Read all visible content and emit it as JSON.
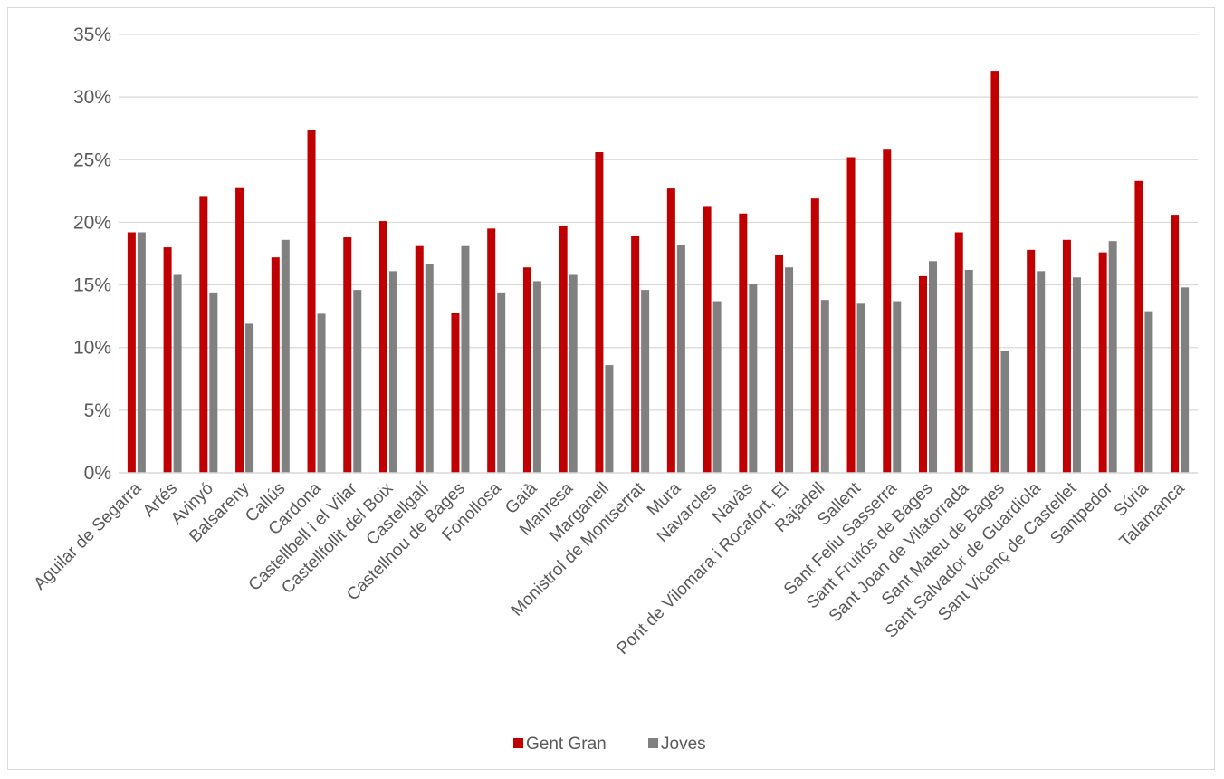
{
  "chart_data": {
    "type": "bar",
    "title": "",
    "xlabel": "",
    "ylabel": "",
    "ylim": [
      0,
      35
    ],
    "y_ticks": [
      "0%",
      "5%",
      "10%",
      "15%",
      "20%",
      "25%",
      "30%",
      "35%"
    ],
    "y_tick_values": [
      0,
      5,
      10,
      15,
      20,
      25,
      30,
      35
    ],
    "grid": "horizontal",
    "legend_position": "bottom",
    "categories": [
      "Aguilar de Segarra",
      "Artés",
      "Avinyó",
      "Balsareny",
      "Callús",
      "Cardona",
      "Castellbell i el Vilar",
      "Castellfollit del Boix",
      "Castellgalí",
      "Castellnou de Bages",
      "Fonollosa",
      "Gaià",
      "Manresa",
      "Marganell",
      "Monistrol de Montserrat",
      "Mura",
      "Navarcles",
      "Navàs",
      "Pont de Vilomara i Rocafort, El",
      "Rajadell",
      "Sallent",
      "Sant Feliu Sasserra",
      "Sant Fruitós de Bages",
      "Sant Joan de Vilatorrada",
      "Sant Mateu de Bages",
      "Sant Salvador de Guardiola",
      "Sant Vicenç de Castellet",
      "Santpedor",
      "Súria",
      "Talamanca"
    ],
    "series": [
      {
        "name": "Gent Gran",
        "color": "#c00000",
        "values": [
          19.2,
          18.0,
          22.1,
          22.8,
          17.2,
          27.4,
          18.8,
          20.1,
          18.1,
          12.8,
          19.5,
          16.4,
          19.7,
          25.6,
          18.9,
          22.7,
          21.3,
          20.7,
          17.4,
          21.9,
          25.2,
          25.8,
          15.7,
          19.2,
          32.1,
          17.8,
          18.6,
          17.6,
          23.3,
          20.6
        ]
      },
      {
        "name": "Joves",
        "color": "#808080",
        "values": [
          19.2,
          15.8,
          14.4,
          11.9,
          18.6,
          12.7,
          14.6,
          16.1,
          16.7,
          18.1,
          14.4,
          15.3,
          15.8,
          8.6,
          14.6,
          18.2,
          13.7,
          15.1,
          16.4,
          13.8,
          13.5,
          13.7,
          16.9,
          16.2,
          9.7,
          16.1,
          15.6,
          18.5,
          12.9,
          14.8
        ]
      }
    ]
  }
}
